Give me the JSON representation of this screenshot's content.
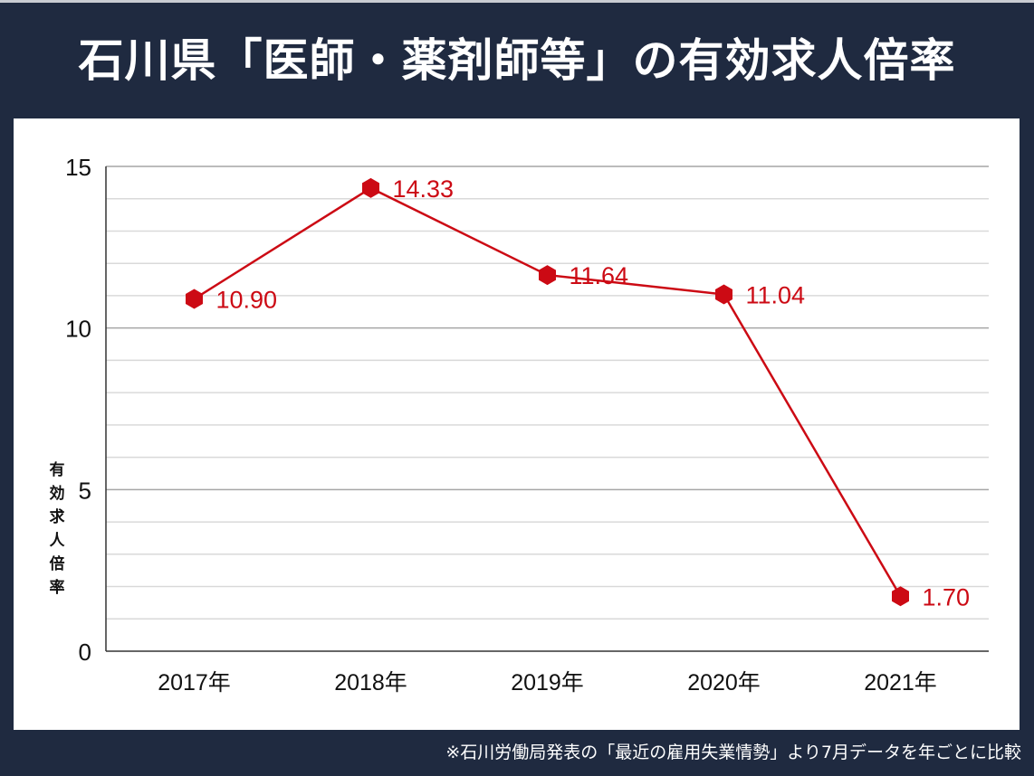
{
  "header": {
    "title": "石川県「医師・薬剤師等」の有効求人倍率"
  },
  "footer": {
    "note": "※石川労働局発表の「最近の雇用失業情勢」より7月データを年ごとに比較"
  },
  "colors": {
    "background": "#1f2a40",
    "panel": "#ffffff",
    "series": "#cc0a14",
    "grid_major": "#a6a6a6",
    "grid_minor": "#d9d9d9",
    "axis": "#333333"
  },
  "chart_data": {
    "type": "line",
    "title": "石川県「医師・薬剤師等」の有効求人倍率",
    "xlabel": "",
    "ylabel": "有効求人倍率",
    "categories": [
      "2017年",
      "2018年",
      "2019年",
      "2020年",
      "2021年"
    ],
    "series": [
      {
        "name": "有効求人倍率",
        "values": [
          10.9,
          14.33,
          11.64,
          11.04,
          1.7
        ],
        "labels": [
          "10.90",
          "14.33",
          "11.64",
          "11.04",
          "1.70"
        ],
        "marker": "hexagon",
        "color": "#cc0a14"
      }
    ],
    "ylim": [
      0,
      15
    ],
    "yticks": [
      "0",
      "5",
      "10",
      "15"
    ],
    "minor_grid_step": 1,
    "grid": true,
    "legend": "none"
  }
}
